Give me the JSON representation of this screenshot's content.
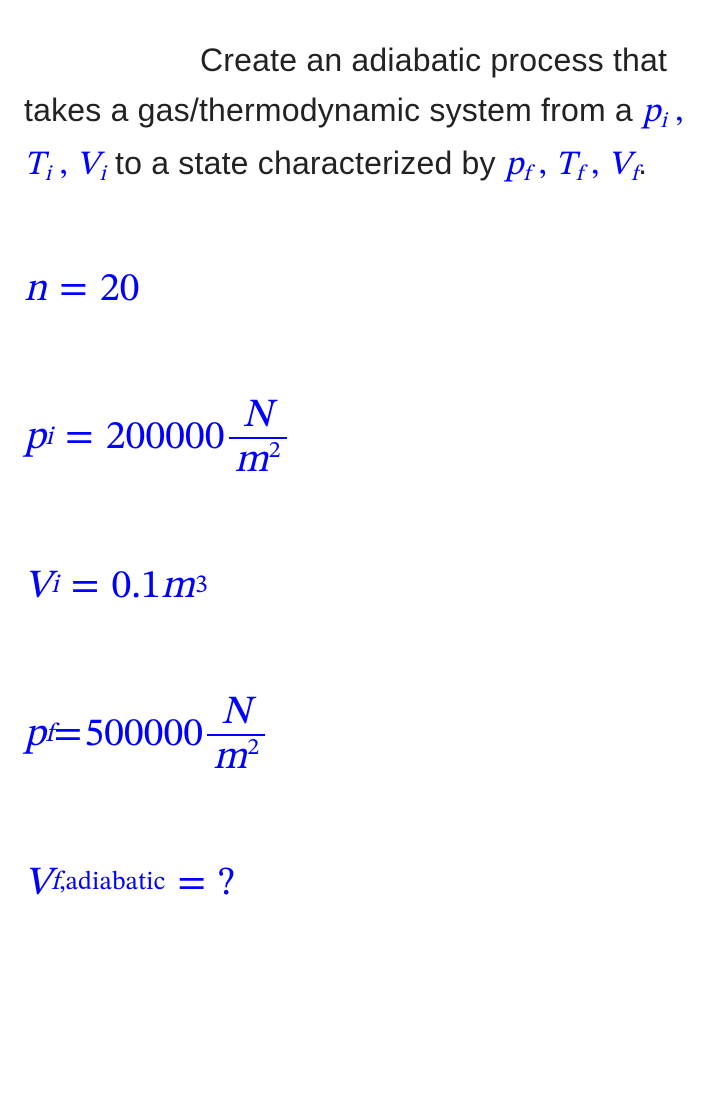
{
  "colors": {
    "body_text": "#222222",
    "math_text": "#0000ff",
    "background": "#ffffff"
  },
  "typography": {
    "body_font": "Segoe UI / Helvetica Neue / Arial",
    "body_fontsize_pt": 24,
    "math_font": "Cambria Math / STIX Two Math / Latin Modern Math",
    "math_inline_fontsize_pt": 26,
    "math_block_fontsize_pt": 30
  },
  "intro": {
    "part1": "Create an adiabatic process that takes a gas/thermodynamic system from a ",
    "state_i": {
      "p": "p",
      "p_sub": "i",
      "T": "T",
      "T_sub": "i",
      "V": "V",
      "V_sub": "i",
      "sep": " , "
    },
    "part2": " to a state characterized by ",
    "state_f": {
      "p": "p",
      "p_sub": "f",
      "T": "T",
      "T_sub": "f",
      "V": "V",
      "V_sub": "f",
      "sep": " , "
    },
    "part3": "."
  },
  "equations": [
    {
      "id": "n",
      "lhs_var": "n",
      "lhs_sub": "",
      "eq": " = ",
      "rhs_num": "20",
      "unit_frac": null,
      "rhs_sup": ""
    },
    {
      "id": "pi",
      "lhs_var": "p",
      "lhs_sub": "i",
      "eq": " = ",
      "rhs_num": "200000",
      "unit_frac": {
        "top": "N",
        "bot_base": "m",
        "bot_sup": "2"
      },
      "rhs_sup": ""
    },
    {
      "id": "Vi",
      "lhs_var": "V",
      "lhs_sub": "i",
      "eq": " = ",
      "rhs_num": "0.1",
      "rhs_unit_inline": "m",
      "rhs_sup": "3",
      "unit_frac": null
    },
    {
      "id": "pf",
      "lhs_var": "p",
      "lhs_sub": "f",
      "eq_tight": "=",
      "rhs_num": "500000",
      "unit_frac": {
        "top": "N",
        "bot_base": "m",
        "bot_sup": "2"
      },
      "rhs_sup": ""
    },
    {
      "id": "Vf",
      "lhs_var": "V",
      "lhs_sub": "f",
      "lhs_subtext": ",adiabatic",
      "eq": " =",
      "rhs_q": "?"
    }
  ]
}
